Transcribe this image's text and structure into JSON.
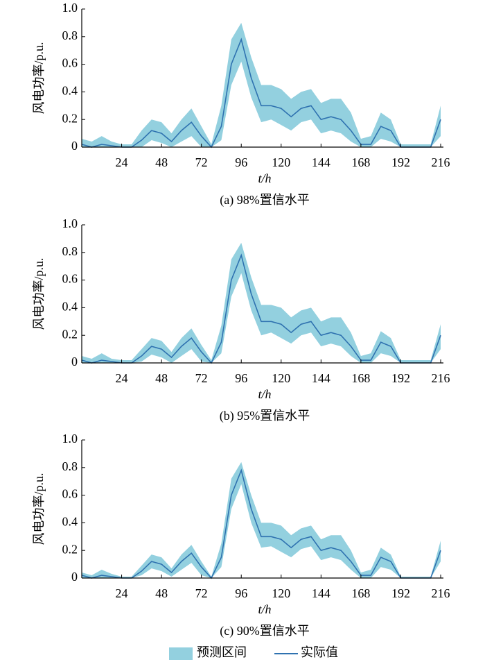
{
  "chart_data": [
    {
      "type": "band-line",
      "title": "(a) 98%置信水平",
      "xlabel": "t/h",
      "ylabel": "风电功率/p.u.",
      "x": [
        0,
        6,
        12,
        18,
        24,
        30,
        36,
        42,
        48,
        54,
        60,
        66,
        72,
        78,
        84,
        90,
        96,
        102,
        108,
        114,
        120,
        126,
        132,
        138,
        144,
        150,
        156,
        162,
        168,
        174,
        180,
        186,
        192,
        198,
        204,
        210,
        216
      ],
      "xlim": [
        0,
        216
      ],
      "ylim": [
        0,
        1
      ],
      "xticks": [
        24,
        48,
        72,
        96,
        120,
        144,
        168,
        192,
        216
      ],
      "yticks": [
        0,
        0.2,
        0.4,
        0.6,
        0.8,
        {
          "value": 1,
          "label": "1.0"
        }
      ],
      "series": [
        {
          "name": "预测区间",
          "color": "#93d0df",
          "upper": [
            0.06,
            0.04,
            0.08,
            0.04,
            0.02,
            0.02,
            0.12,
            0.2,
            0.18,
            0.1,
            0.2,
            0.28,
            0.15,
            0.02,
            0.3,
            0.78,
            0.9,
            0.65,
            0.45,
            0.45,
            0.42,
            0.35,
            0.4,
            0.42,
            0.32,
            0.35,
            0.35,
            0.25,
            0.06,
            0.08,
            0.25,
            0.2,
            0.02,
            0.02,
            0.02,
            0.02,
            0.3
          ],
          "lower": [
            0,
            0,
            0,
            0,
            0,
            0,
            0,
            0.05,
            0.03,
            0,
            0.04,
            0.08,
            0,
            0,
            0.05,
            0.45,
            0.62,
            0.36,
            0.18,
            0.2,
            0.16,
            0.12,
            0.18,
            0.2,
            0.1,
            0.12,
            0.1,
            0.04,
            0,
            0,
            0.06,
            0.04,
            0,
            0,
            0,
            0,
            0.08
          ]
        },
        {
          "name": "实际值",
          "color": "#2f72b0",
          "values": [
            0.02,
            0,
            0.02,
            0.01,
            0,
            0,
            0.05,
            0.12,
            0.1,
            0.04,
            0.12,
            0.18,
            0.08,
            0,
            0.15,
            0.6,
            0.78,
            0.5,
            0.3,
            0.3,
            0.28,
            0.22,
            0.28,
            0.3,
            0.2,
            0.22,
            0.2,
            0.12,
            0.02,
            0.02,
            0.15,
            0.12,
            0,
            0,
            0,
            0,
            0.2
          ]
        }
      ]
    },
    {
      "type": "band-line",
      "title": "(b) 95%置信水平",
      "xlabel": "t/h",
      "ylabel": "风电功率/p.u.",
      "x": [
        0,
        6,
        12,
        18,
        24,
        30,
        36,
        42,
        48,
        54,
        60,
        66,
        72,
        78,
        84,
        90,
        96,
        102,
        108,
        114,
        120,
        126,
        132,
        138,
        144,
        150,
        156,
        162,
        168,
        174,
        180,
        186,
        192,
        198,
        204,
        210,
        216
      ],
      "xlim": [
        0,
        216
      ],
      "ylim": [
        0,
        1
      ],
      "xticks": [
        24,
        48,
        72,
        96,
        120,
        144,
        168,
        192,
        216
      ],
      "yticks": [
        0,
        0.2,
        0.4,
        0.6,
        0.8,
        {
          "value": 1,
          "label": "1.0"
        }
      ],
      "series": [
        {
          "color": "#93d0df",
          "upper": [
            0.05,
            0.03,
            0.07,
            0.03,
            0.02,
            0.02,
            0.1,
            0.18,
            0.16,
            0.08,
            0.18,
            0.25,
            0.13,
            0.02,
            0.27,
            0.75,
            0.87,
            0.62,
            0.42,
            0.42,
            0.4,
            0.33,
            0.38,
            0.4,
            0.3,
            0.33,
            0.33,
            0.22,
            0.05,
            0.07,
            0.23,
            0.18,
            0.02,
            0.02,
            0.02,
            0.02,
            0.28
          ],
          "lower": [
            0,
            0,
            0,
            0,
            0,
            0,
            0.01,
            0.06,
            0.04,
            0,
            0.05,
            0.1,
            0.01,
            0,
            0.07,
            0.48,
            0.65,
            0.38,
            0.2,
            0.22,
            0.18,
            0.14,
            0.2,
            0.22,
            0.12,
            0.14,
            0.12,
            0.05,
            0,
            0,
            0.07,
            0.05,
            0,
            0,
            0,
            0,
            0.1
          ]
        },
        {
          "color": "#2f72b0",
          "values": [
            0.02,
            0,
            0.02,
            0.01,
            0,
            0,
            0.05,
            0.12,
            0.1,
            0.04,
            0.12,
            0.18,
            0.08,
            0,
            0.15,
            0.6,
            0.78,
            0.5,
            0.3,
            0.3,
            0.28,
            0.22,
            0.28,
            0.3,
            0.2,
            0.22,
            0.2,
            0.12,
            0.02,
            0.02,
            0.15,
            0.12,
            0,
            0,
            0,
            0,
            0.2
          ]
        }
      ]
    },
    {
      "type": "band-line",
      "title": "(c) 90%置信水平",
      "xlabel": "t/h",
      "ylabel": "风电功率/p.u.",
      "x": [
        0,
        6,
        12,
        18,
        24,
        30,
        36,
        42,
        48,
        54,
        60,
        66,
        72,
        78,
        84,
        90,
        96,
        102,
        108,
        114,
        120,
        126,
        132,
        138,
        144,
        150,
        156,
        162,
        168,
        174,
        180,
        186,
        192,
        198,
        204,
        210,
        216
      ],
      "xlim": [
        0,
        216
      ],
      "ylim": [
        0,
        1
      ],
      "xticks": [
        24,
        48,
        72,
        96,
        120,
        144,
        168,
        192,
        216
      ],
      "yticks": [
        0,
        0.2,
        0.4,
        0.6,
        0.8,
        {
          "value": 1,
          "label": "1.0"
        }
      ],
      "series": [
        {
          "color": "#93d0df",
          "upper": [
            0.04,
            0.02,
            0.06,
            0.03,
            0.01,
            0.01,
            0.09,
            0.17,
            0.15,
            0.07,
            0.17,
            0.24,
            0.12,
            0.01,
            0.25,
            0.72,
            0.84,
            0.6,
            0.4,
            0.4,
            0.38,
            0.31,
            0.36,
            0.38,
            0.28,
            0.31,
            0.31,
            0.2,
            0.04,
            0.06,
            0.22,
            0.17,
            0.01,
            0.01,
            0.01,
            0.01,
            0.27
          ],
          "lower": [
            0,
            0,
            0,
            0,
            0,
            0,
            0.02,
            0.07,
            0.05,
            0.01,
            0.06,
            0.11,
            0.02,
            0,
            0.08,
            0.5,
            0.68,
            0.4,
            0.22,
            0.23,
            0.19,
            0.15,
            0.21,
            0.23,
            0.13,
            0.15,
            0.13,
            0.06,
            0,
            0,
            0.08,
            0.06,
            0,
            0,
            0,
            0,
            0.12
          ]
        },
        {
          "color": "#2f72b0",
          "values": [
            0.02,
            0,
            0.02,
            0.01,
            0,
            0,
            0.05,
            0.12,
            0.1,
            0.04,
            0.12,
            0.18,
            0.08,
            0,
            0.15,
            0.6,
            0.78,
            0.5,
            0.3,
            0.3,
            0.28,
            0.22,
            0.28,
            0.3,
            0.2,
            0.22,
            0.2,
            0.12,
            0.02,
            0.02,
            0.15,
            0.12,
            0,
            0,
            0,
            0,
            0.2
          ]
        }
      ]
    }
  ]
}
